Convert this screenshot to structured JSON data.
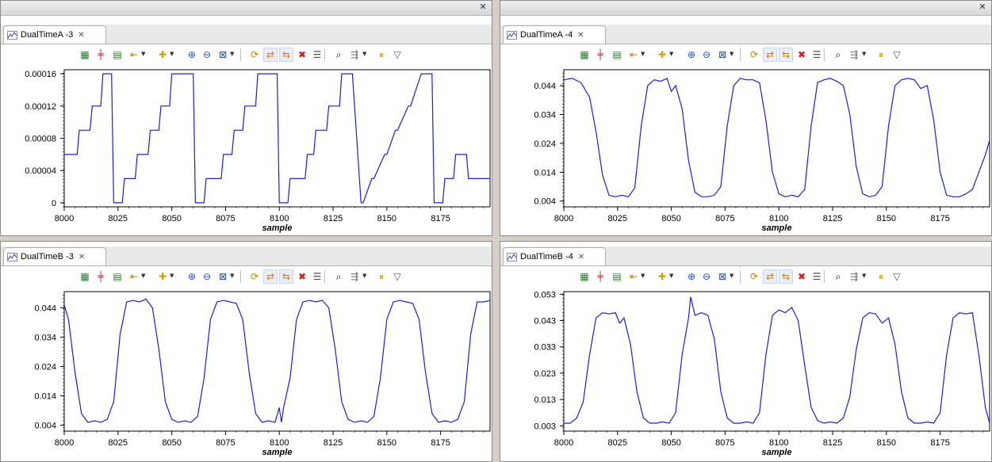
{
  "panes": [
    {
      "tab_label": "DualTimeA -3",
      "ylabels": [
        "0.00016",
        "0.00012",
        "0.00008",
        "0.00004",
        "0"
      ],
      "xlabels": [
        "8000",
        "8025",
        "8050",
        "8075",
        "8100",
        "8125",
        "8150",
        "8175"
      ],
      "xlabel": "sample"
    },
    {
      "tab_label": "DualTimeA -4",
      "ylabels": [
        "0.044",
        "0.034",
        "0.024",
        "0.014",
        "0.004"
      ],
      "xlabels": [
        "8000",
        "8025",
        "8050",
        "8075",
        "8100",
        "8125",
        "8150",
        "8175"
      ],
      "xlabel": "sample"
    },
    {
      "tab_label": "DualTimeB -3",
      "ylabels": [
        "0.044",
        "0.034",
        "0.024",
        "0.014",
        "0.004"
      ],
      "xlabels": [
        "8000",
        "8025",
        "8050",
        "8075",
        "8100",
        "8125",
        "8150",
        "8175"
      ],
      "xlabel": "sample"
    },
    {
      "tab_label": "DualTimeB -4",
      "ylabels": [
        "0.053",
        "0.043",
        "0.033",
        "0.023",
        "0.013",
        "0.003"
      ],
      "xlabels": [
        "8000",
        "8025",
        "8050",
        "8075",
        "8100",
        "8125",
        "8150",
        "8175"
      ],
      "xlabel": "sample"
    }
  ],
  "toolbar_icons": [
    "chart-align-icon",
    "center-icon",
    "fit-icon",
    "marker-icon",
    "add-icon",
    "zoom-in-icon",
    "zoom-out-icon",
    "zoom-fit-icon",
    "refresh-icon",
    "sync-icon",
    "sync2-icon",
    "delete-icon",
    "list-icon",
    "find-icon",
    "settings-icon",
    "pause-icon",
    "view-menu-icon"
  ],
  "colors": {
    "series": "#2020c8",
    "frame": "#d4d0c8"
  },
  "chart_data": [
    {
      "type": "line",
      "xlabel": "sample",
      "xlim": [
        8000,
        8198
      ],
      "ylim": [
        -5e-06,
        0.000165
      ],
      "series": [
        {
          "x": [
            8000,
            8006,
            8007,
            8012,
            8013,
            8017,
            8018,
            8022,
            8023,
            8027,
            8028,
            8033,
            8034,
            8039,
            8040,
            8044,
            8045,
            8049,
            8050,
            8055,
            8056,
            8060,
            8061,
            8065,
            8066,
            8067,
            8073,
            8074,
            8078,
            8079,
            8083,
            8084,
            8089,
            8090,
            8094,
            8095,
            8099,
            8100,
            8104,
            8105,
            8106,
            8112,
            8113,
            8116,
            8117,
            8122,
            8123,
            8128,
            8129,
            8133,
            8134,
            8138,
            8139,
            8143,
            8144,
            8149,
            8150,
            8154,
            8155,
            8160,
            8161,
            8166,
            8167,
            8171,
            8172,
            8176,
            8177,
            8181,
            8182,
            8187,
            8188,
            8192,
            8193,
            8198
          ],
          "y": [
            6e-05,
            6e-05,
            9e-05,
            9e-05,
            0.00012,
            0.00012,
            0.00016,
            0.00016,
            0,
            0,
            3e-05,
            3e-05,
            6e-05,
            6e-05,
            9e-05,
            9e-05,
            0.00012,
            0.00012,
            0.00016,
            0.00016,
            0.00016,
            0.00016,
            0,
            0,
            3e-05,
            3e-05,
            3e-05,
            6e-05,
            6e-05,
            9e-05,
            9e-05,
            0.00012,
            0.00012,
            0.00016,
            0.00016,
            0.00016,
            0.00016,
            0,
            0,
            3e-05,
            3e-05,
            3e-05,
            6e-05,
            6e-05,
            9e-05,
            9e-05,
            0.00012,
            0.00012,
            0.00016,
            0.00016,
            0.00016,
            0,
            0,
            3e-05,
            3e-05,
            6e-05,
            6e-05,
            9e-05,
            9e-05,
            0.00012,
            0.00012,
            0.00016,
            0.00016,
            0.00016,
            0,
            0,
            3e-05,
            3e-05,
            6e-05,
            6e-05,
            3e-05,
            3e-05,
            3e-05,
            3e-05
          ]
        }
      ]
    },
    {
      "type": "line",
      "xlabel": "sample",
      "xlim": [
        8000,
        8198
      ],
      "ylim": [
        0.002,
        0.0495
      ],
      "series": [
        {
          "x": [
            8000,
            8004,
            8008,
            8012,
            8015,
            8018,
            8021,
            8024,
            8027,
            8030,
            8033,
            8036,
            8039,
            8042,
            8045,
            8048,
            8050,
            8052,
            8055,
            8058,
            8061,
            8064,
            8067,
            8070,
            8073,
            8076,
            8079,
            8082,
            8085,
            8088,
            8091,
            8094,
            8097,
            8100,
            8103,
            8106,
            8109,
            8112,
            8115,
            8118,
            8121,
            8124,
            8127,
            8130,
            8133,
            8136,
            8139,
            8142,
            8145,
            8148,
            8151,
            8154,
            8157,
            8160,
            8163,
            8166,
            8169,
            8172,
            8175,
            8178,
            8181,
            8184,
            8187,
            8190,
            8193,
            8196,
            8198
          ],
          "y": [
            0.046,
            0.0465,
            0.045,
            0.04,
            0.028,
            0.013,
            0.006,
            0.0055,
            0.006,
            0.0055,
            0.0085,
            0.03,
            0.044,
            0.046,
            0.0455,
            0.0465,
            0.042,
            0.044,
            0.036,
            0.018,
            0.007,
            0.0055,
            0.0055,
            0.006,
            0.009,
            0.03,
            0.044,
            0.0465,
            0.046,
            0.046,
            0.045,
            0.032,
            0.014,
            0.0065,
            0.0055,
            0.006,
            0.0055,
            0.008,
            0.03,
            0.045,
            0.046,
            0.0465,
            0.0455,
            0.044,
            0.034,
            0.016,
            0.0065,
            0.0055,
            0.006,
            0.009,
            0.03,
            0.044,
            0.046,
            0.0465,
            0.046,
            0.043,
            0.044,
            0.032,
            0.014,
            0.006,
            0.0055,
            0.0055,
            0.0065,
            0.008,
            0.014,
            0.02,
            0.025
          ]
        }
      ]
    },
    {
      "type": "line",
      "xlabel": "sample",
      "xlim": [
        8000,
        8198
      ],
      "ylim": [
        0.002,
        0.0495
      ],
      "series": [
        {
          "x": [
            8000,
            8002,
            8005,
            8008,
            8011,
            8014,
            8017,
            8020,
            8023,
            8026,
            8029,
            8032,
            8035,
            8038,
            8041,
            8044,
            8047,
            8050,
            8053,
            8056,
            8059,
            8062,
            8065,
            8068,
            8071,
            8074,
            8077,
            8080,
            8083,
            8086,
            8089,
            8092,
            8095,
            8098,
            8100,
            8101,
            8102,
            8105,
            8108,
            8111,
            8114,
            8117,
            8120,
            8123,
            8126,
            8129,
            8132,
            8135,
            8138,
            8141,
            8144,
            8147,
            8150,
            8153,
            8156,
            8159,
            8162,
            8165,
            8168,
            8171,
            8174,
            8177,
            8180,
            8183,
            8186,
            8189,
            8192,
            8195,
            8198
          ],
          "y": [
            0.045,
            0.04,
            0.022,
            0.008,
            0.005,
            0.0055,
            0.005,
            0.006,
            0.012,
            0.035,
            0.046,
            0.0465,
            0.046,
            0.047,
            0.044,
            0.03,
            0.012,
            0.006,
            0.005,
            0.0055,
            0.005,
            0.007,
            0.02,
            0.04,
            0.046,
            0.0465,
            0.046,
            0.0455,
            0.04,
            0.022,
            0.008,
            0.005,
            0.0055,
            0.005,
            0.01,
            0.005,
            0.01,
            0.02,
            0.04,
            0.046,
            0.0465,
            0.046,
            0.0465,
            0.044,
            0.03,
            0.012,
            0.006,
            0.005,
            0.0055,
            0.005,
            0.007,
            0.02,
            0.04,
            0.046,
            0.0465,
            0.046,
            0.0455,
            0.04,
            0.022,
            0.008,
            0.005,
            0.0055,
            0.005,
            0.006,
            0.012,
            0.035,
            0.046,
            0.046,
            0.0465
          ]
        }
      ]
    },
    {
      "type": "line",
      "xlabel": "sample",
      "xlim": [
        8000,
        8198
      ],
      "ylim": [
        0.001,
        0.054
      ],
      "series": [
        {
          "x": [
            8000,
            8003,
            8006,
            8009,
            8012,
            8015,
            8018,
            8021,
            8024,
            8026,
            8028,
            8031,
            8034,
            8037,
            8040,
            8043,
            8046,
            8049,
            8052,
            8055,
            8058,
            8059,
            8061,
            8064,
            8067,
            8070,
            8073,
            8076,
            8079,
            8082,
            8085,
            8088,
            8091,
            8094,
            8097,
            8100,
            8103,
            8106,
            8109,
            8112,
            8115,
            8118,
            8121,
            8124,
            8127,
            8130,
            8133,
            8136,
            8139,
            8142,
            8145,
            8148,
            8151,
            8154,
            8157,
            8160,
            8163,
            8166,
            8169,
            8172,
            8175,
            8178,
            8181,
            8184,
            8187,
            8190,
            8193,
            8196,
            8198
          ],
          "y": [
            0.004,
            0.004,
            0.006,
            0.012,
            0.03,
            0.044,
            0.046,
            0.0455,
            0.046,
            0.042,
            0.044,
            0.034,
            0.016,
            0.006,
            0.004,
            0.004,
            0.0045,
            0.004,
            0.008,
            0.03,
            0.044,
            0.052,
            0.045,
            0.046,
            0.045,
            0.036,
            0.016,
            0.006,
            0.004,
            0.004,
            0.0045,
            0.004,
            0.008,
            0.03,
            0.045,
            0.047,
            0.046,
            0.048,
            0.043,
            0.026,
            0.01,
            0.005,
            0.004,
            0.0045,
            0.004,
            0.006,
            0.014,
            0.032,
            0.044,
            0.046,
            0.0455,
            0.042,
            0.044,
            0.034,
            0.016,
            0.006,
            0.004,
            0.004,
            0.0045,
            0.004,
            0.008,
            0.03,
            0.044,
            0.046,
            0.0455,
            0.046,
            0.03,
            0.01,
            0.004
          ]
        }
      ]
    }
  ]
}
